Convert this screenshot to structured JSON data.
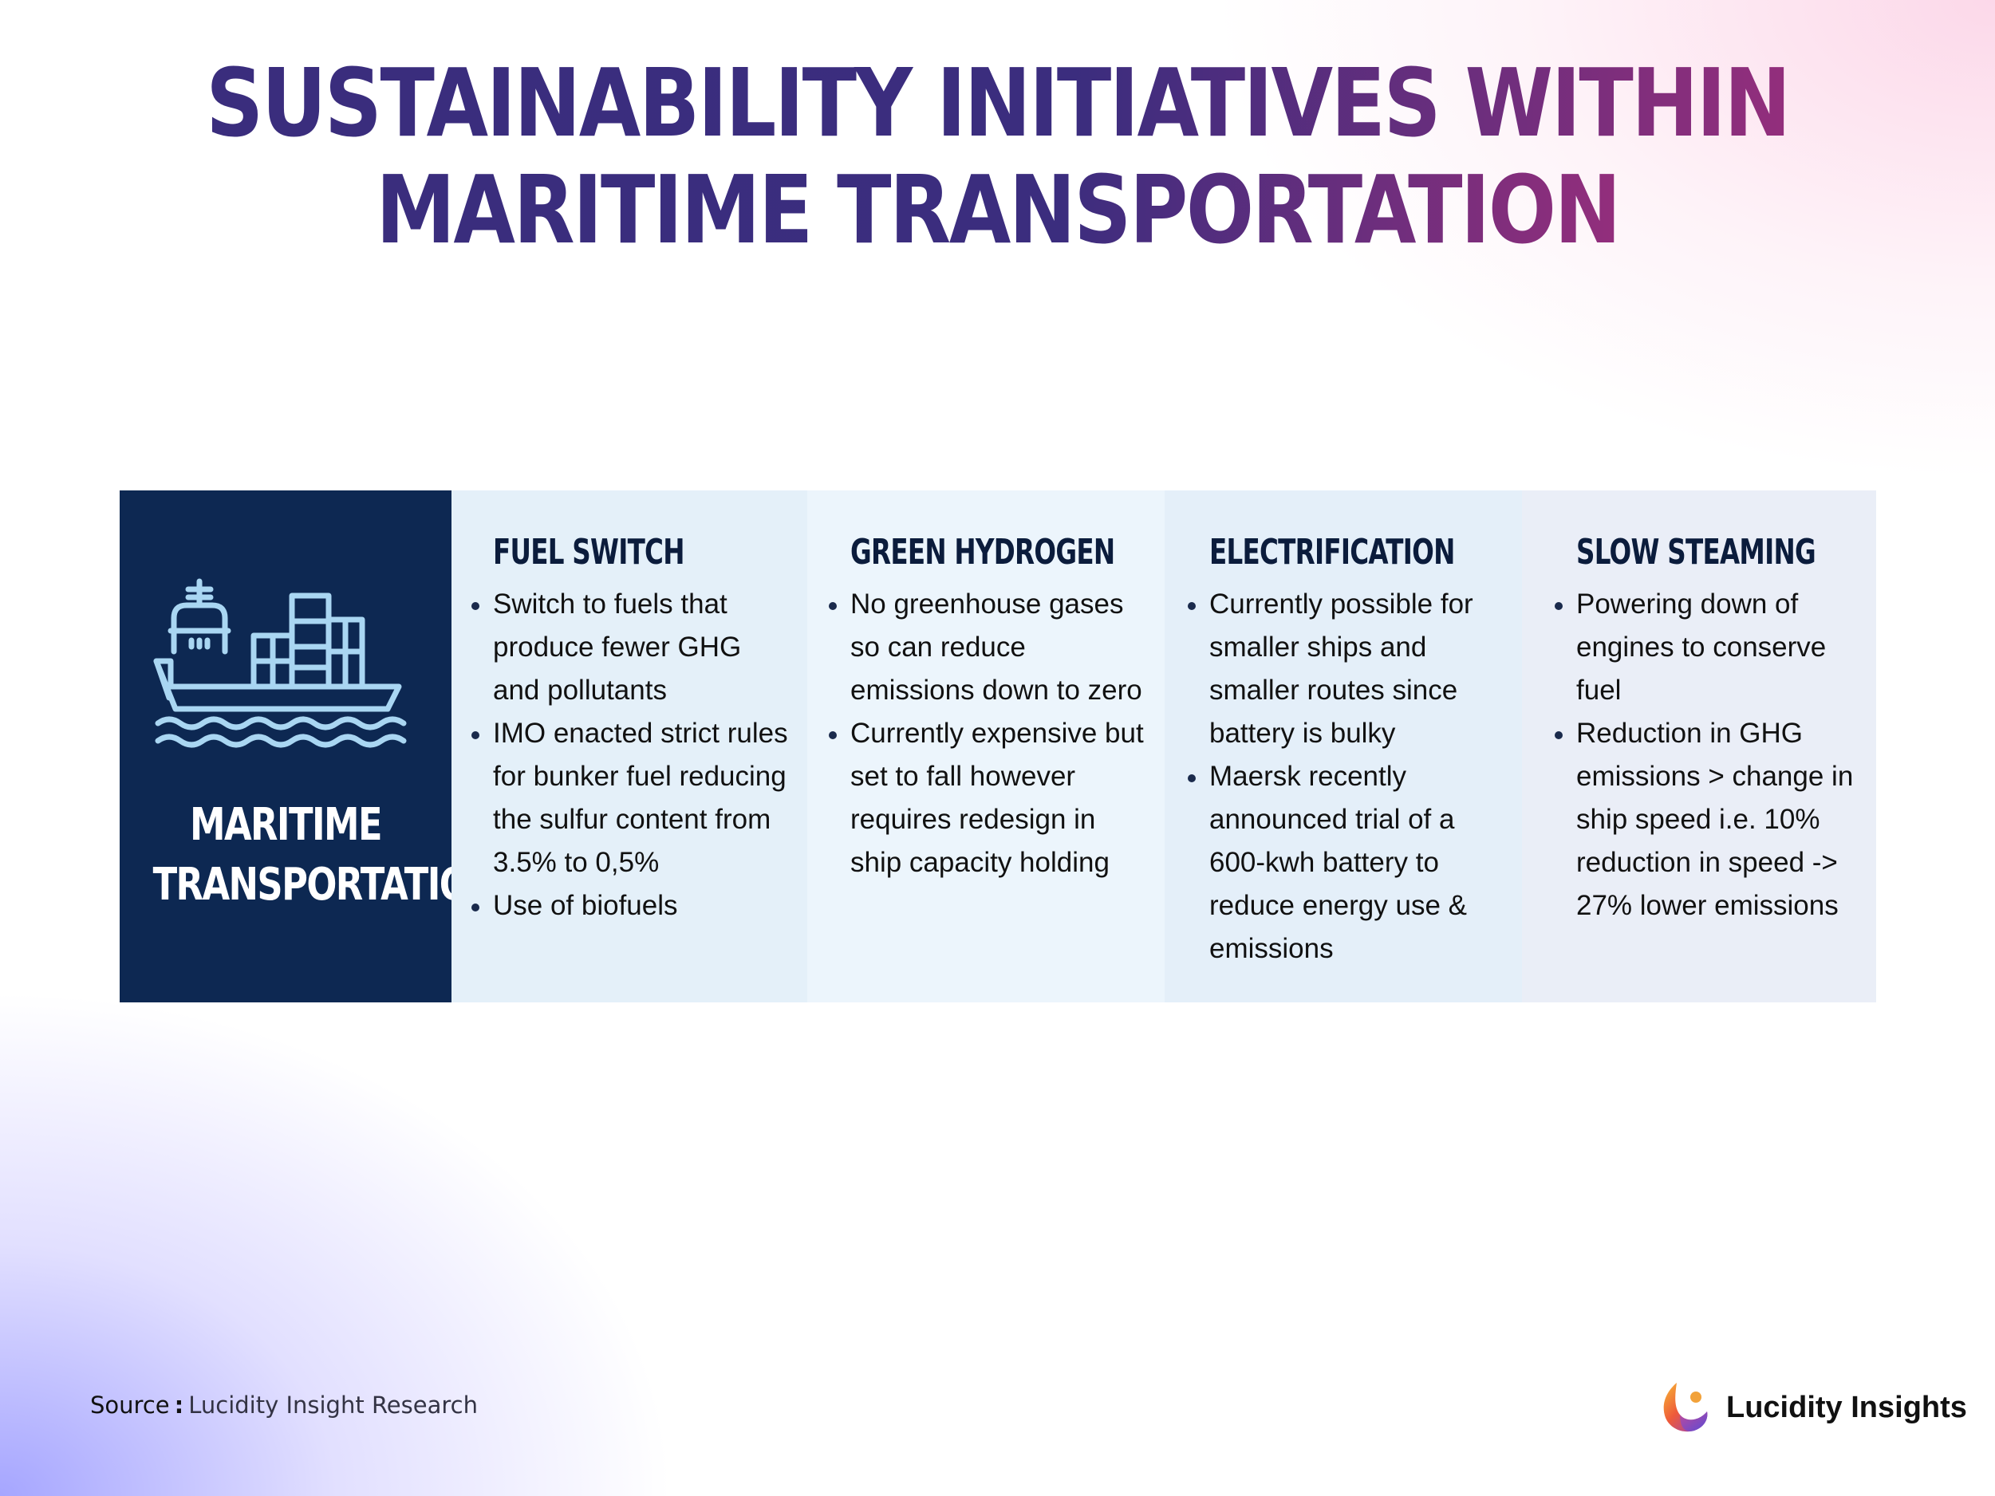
{
  "header": {
    "title_line1": "SUSTAINABILITY INITIATIVES WITHIN",
    "title_line2": "MARITIME TRANSPORTATION"
  },
  "hero": {
    "icon": "cargo-ship-icon",
    "label_line1": "MARITIME",
    "label_line2": "TRANSPORTATION"
  },
  "columns": [
    {
      "title": "FUEL SWITCH",
      "bullets": [
        "Switch to fuels that produce fewer GHG and pollutants",
        "IMO enacted strict rules for bunker fuel reducing the sulfur content from 3.5% to 0,5%",
        "Use of biofuels"
      ]
    },
    {
      "title": "GREEN HYDROGEN",
      "bullets": [
        "No greenhouse gases so can reduce emissions down to zero",
        "Currently expensive but set to fall however requires redesign in ship capacity holding"
      ]
    },
    {
      "title": "ELECTRIFICATION",
      "bullets": [
        "Currently possible for smaller ships and smaller routes since battery is bulky",
        "Maersk recently announced trial of a 600-kwh battery to reduce energy use & emissions"
      ]
    },
    {
      "title": "SLOW STEAMING",
      "bullets": [
        "Powering down of engines to conserve fuel",
        "Reduction in GHG emissions > change in ship speed i.e. 10% reduction in speed -> 27% lower emissions"
      ]
    }
  ],
  "footer": {
    "source_label": "Source",
    "source_colon": ":",
    "source_value": "Lucidity Insight Research",
    "brand_name": "Lucidity Insights",
    "brand_icon": "lucidity-logo-icon"
  },
  "colors": {
    "navy": "#0d2852",
    "title_start": "#3a2d7d",
    "title_end": "#932e7c",
    "ship_icon": "#a9d6f2"
  }
}
